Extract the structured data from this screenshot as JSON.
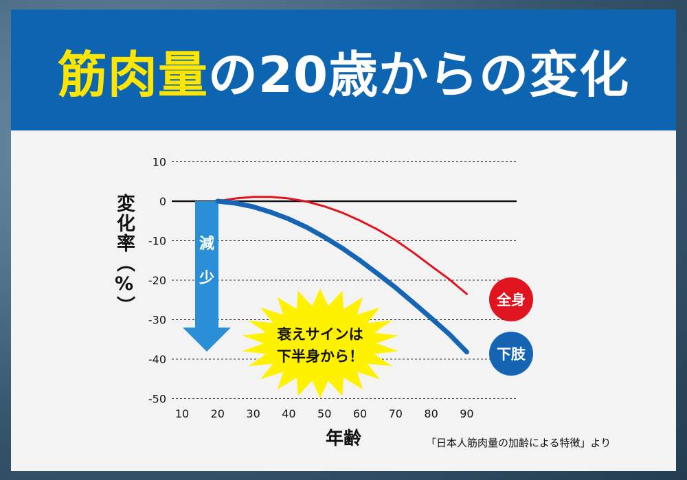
{
  "header": {
    "title_highlight": "筋肉量",
    "title_rest": "の20歳からの変化"
  },
  "source_note": "「日本人筋肉量の加齢による特徴」より",
  "colors": {
    "header_bg": "#0d64b0",
    "title_highlight": "#ffe600",
    "whole_body": "#e0141e",
    "lower_limbs": "#1565b4",
    "arrow": "#2a8fd6",
    "burst": "#fff200"
  },
  "chart_data": {
    "type": "line",
    "xlabel": "年齢",
    "ylabel": "変化率（%）",
    "xticks": [
      10,
      20,
      30,
      40,
      50,
      60,
      70,
      80,
      90
    ],
    "yticks": [
      10,
      0,
      -10,
      -20,
      -30,
      -40,
      -50
    ],
    "xlim": [
      10,
      98
    ],
    "ylim": [
      -50,
      10
    ],
    "grid": "dashed horizontal",
    "series": [
      {
        "name": "全身",
        "color": "#e0141e",
        "x": [
          20,
          25,
          30,
          35,
          40,
          45,
          50,
          55,
          60,
          65,
          70,
          75,
          80,
          85,
          90
        ],
        "y": [
          0,
          0.7,
          1.1,
          1.1,
          0.7,
          -0.1,
          -1.3,
          -2.9,
          -4.9,
          -7.2,
          -9.9,
          -13.0,
          -16.4,
          -19.7,
          -23.5
        ]
      },
      {
        "name": "下肢",
        "color": "#1565b4",
        "x": [
          20,
          25,
          30,
          35,
          40,
          45,
          50,
          55,
          60,
          65,
          70,
          75,
          80,
          85,
          90
        ],
        "y": [
          0,
          -0.5,
          -1.4,
          -2.8,
          -4.5,
          -6.6,
          -9.1,
          -11.9,
          -15.0,
          -18.4,
          -21.9,
          -25.7,
          -29.6,
          -33.6,
          -38.2
        ]
      }
    ],
    "annotations": {
      "arrow_label": [
        "減",
        "少"
      ],
      "burst_text": [
        "衰えサインは",
        "下半身から！"
      ]
    }
  }
}
